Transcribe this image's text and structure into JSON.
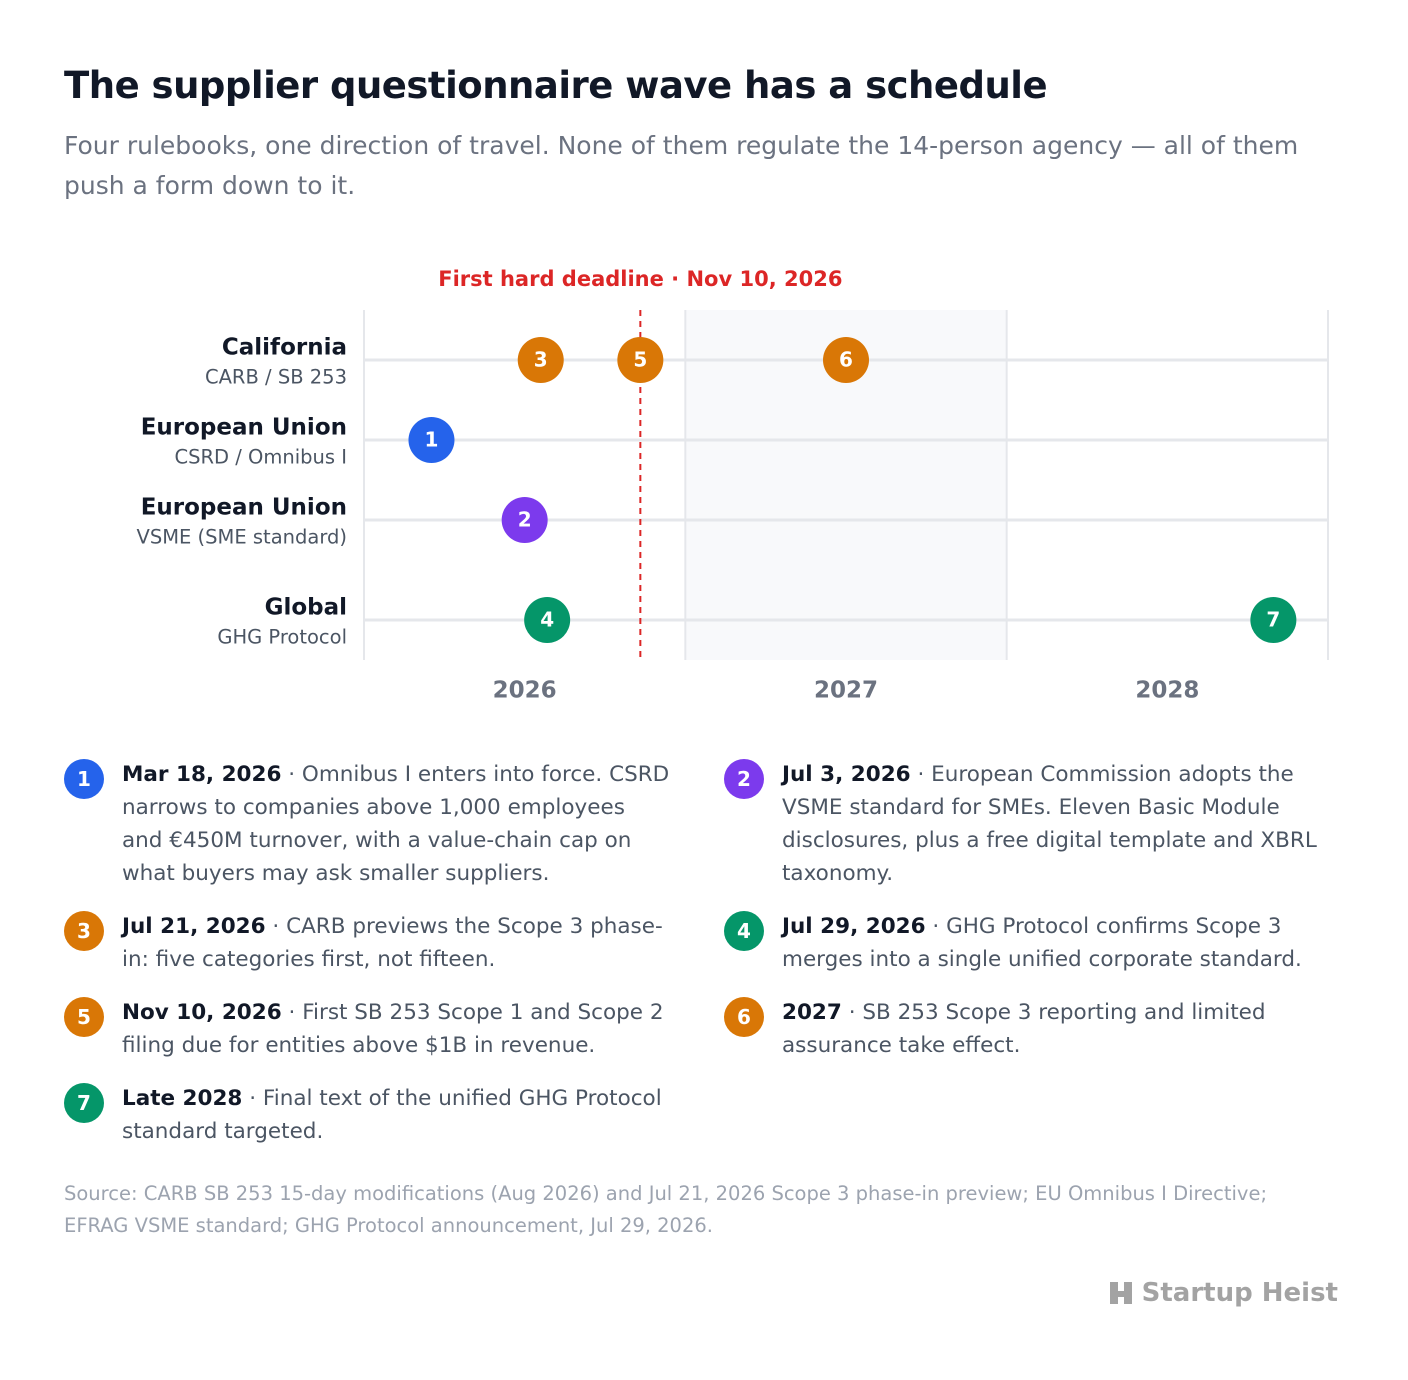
{
  "title": "The supplier questionnaire wave has a schedule",
  "subtitle": "Four rulebooks, one direction of travel. None of them regulate the 14-person agency — all of them push a form down to it.",
  "chart_data": {
    "type": "timeline",
    "xlim": [
      2026,
      2029
    ],
    "xticks": [
      {
        "value": 2026.5,
        "label": "2026"
      },
      {
        "value": 2027.5,
        "label": "2027"
      },
      {
        "value": 2028.5,
        "label": "2028"
      }
    ],
    "xgrid": [
      2026,
      2027,
      2028,
      2029
    ],
    "highlight": [
      2027,
      2028
    ],
    "deadline": {
      "label": "First hard deadline · Nov 10, 2026",
      "x": 2026.86,
      "color": "#dc2626"
    },
    "lanes": [
      {
        "name": "California",
        "subtitle": "CARB / SB 253",
        "events": [
          {
            "id": 3,
            "date": "Jul 21, 2026",
            "text": "· CARB previews the Scope 3 phase-in: five categories first, not fifteen.",
            "x": 2026.55,
            "color": "#d97706"
          },
          {
            "id": 5,
            "date": "Nov 10, 2026",
            "text": "· First SB 253 Scope 1 and Scope 2 filing due for entities above $1B in revenue.",
            "x": 2026.86,
            "color": "#d97706"
          },
          {
            "id": 6,
            "date": "2027",
            "text": "· SB 253 Scope 3 reporting and limited assurance take effect.",
            "x": 2027.5,
            "color": "#d97706"
          }
        ]
      },
      {
        "name": "European Union",
        "subtitle": "CSRD / Omnibus I",
        "events": [
          {
            "id": 1,
            "date": "Mar 18, 2026",
            "text": "· Omnibus I enters into force. CSRD narrows to companies above 1,000 employees and €450M turnover, with a value-chain cap on what buyers may ask smaller suppliers.",
            "x": 2026.21,
            "color": "#2563eb"
          }
        ]
      },
      {
        "name": "European Union",
        "subtitle": "VSME (SME standard)",
        "events": [
          {
            "id": 2,
            "date": "Jul 3, 2026",
            "text": "· European Commission adopts the VSME standard for SMEs. Eleven Basic Module disclosures, plus a free digital template and XBRL taxonomy.",
            "x": 2026.5,
            "color": "#7c3aed"
          }
        ]
      },
      {
        "name": "Global",
        "subtitle": "GHG Protocol",
        "events": [
          {
            "id": 4,
            "date": "Jul 29, 2026",
            "text": "· GHG Protocol confirms Scope 3 merges into a single unified corporate standard.",
            "x": 2026.57,
            "color": "#059669"
          },
          {
            "id": 7,
            "date": "Late 2028",
            "text": "· Final text of the unified GHG Protocol standard targeted.",
            "x": 2028.83,
            "color": "#059669"
          }
        ]
      }
    ]
  },
  "source": "Source: CARB SB 253 15-day modifications (Aug 2026) and Jul 21, 2026 Scope 3 phase-in preview; EU Omnibus I Directive; EFRAG VSME standard; GHG Protocol announcement, Jul 29, 2026.",
  "brand": "Startup Heist"
}
